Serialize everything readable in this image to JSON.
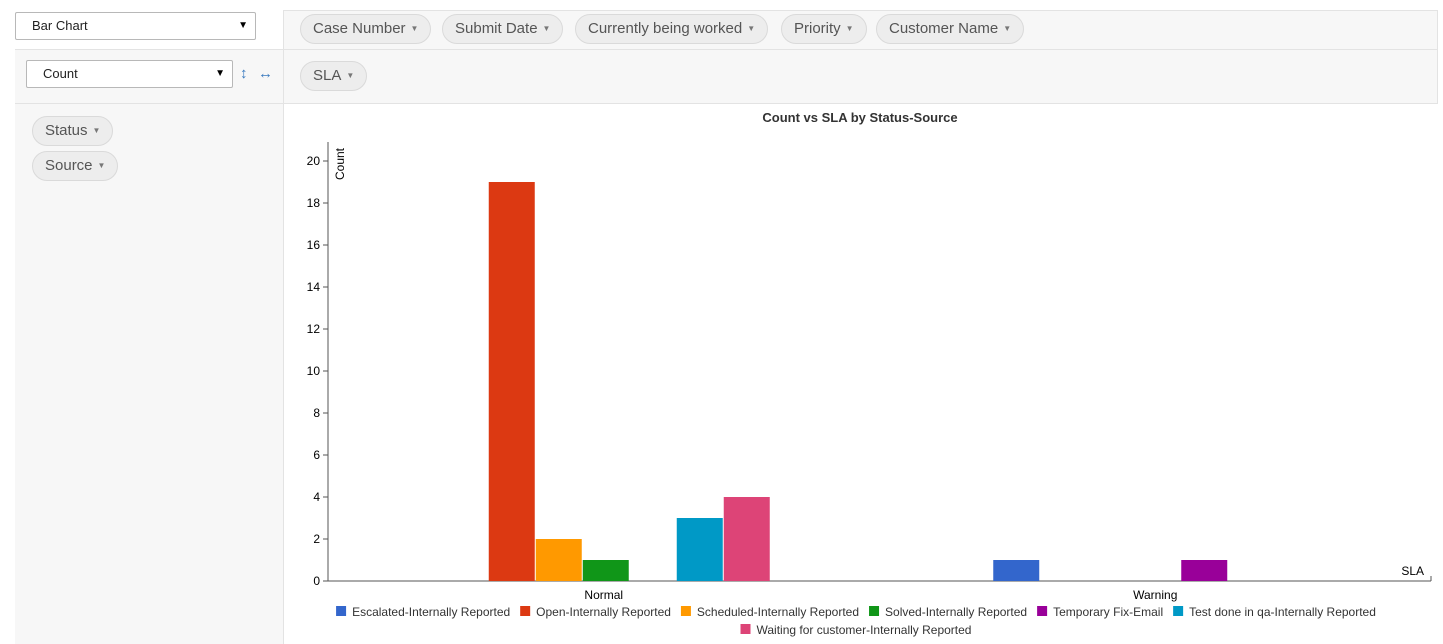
{
  "renderer": {
    "selected": "Bar Chart"
  },
  "aggregator": {
    "selected": "Count"
  },
  "column_fields": [
    "Case Number",
    "Submit Date",
    "Currently being worked",
    "Priority",
    "Customer Name"
  ],
  "col_axis_fields": [
    "SLA"
  ],
  "row_axis_fields": [
    "Status",
    "Source"
  ],
  "icons": {
    "sort_rows": "up-down-arrow-icon",
    "sort_cols": "left-right-arrow-icon",
    "caret": "caret-down-icon"
  },
  "chart_data": {
    "type": "bar",
    "title": "Count vs SLA by Status-Source",
    "ylabel": "Count",
    "xlabel": "SLA",
    "ylim": [
      0,
      21
    ],
    "yticks": [
      0,
      2,
      4,
      6,
      8,
      10,
      12,
      14,
      16,
      18,
      20
    ],
    "categories": [
      "Normal",
      "Warning"
    ],
    "series": [
      {
        "name": "Escalated-Internally Reported",
        "color": "#3366cc",
        "values": [
          0,
          1
        ]
      },
      {
        "name": "Open-Internally Reported",
        "color": "#dc3912",
        "values": [
          19,
          0
        ]
      },
      {
        "name": "Scheduled-Internally Reported",
        "color": "#ff9900",
        "values": [
          2,
          0
        ]
      },
      {
        "name": "Solved-Internally Reported",
        "color": "#109618",
        "values": [
          1,
          0
        ]
      },
      {
        "name": "Temporary Fix-Email",
        "color": "#990099",
        "values": [
          0,
          1
        ]
      },
      {
        "name": "Test done in qa-Internally Reported",
        "color": "#0099c6",
        "values": [
          3,
          0
        ]
      },
      {
        "name": "Waiting for customer-Internally Reported",
        "color": "#dd4477",
        "values": [
          4,
          0
        ]
      }
    ],
    "legend": "bottom",
    "grid": false
  }
}
